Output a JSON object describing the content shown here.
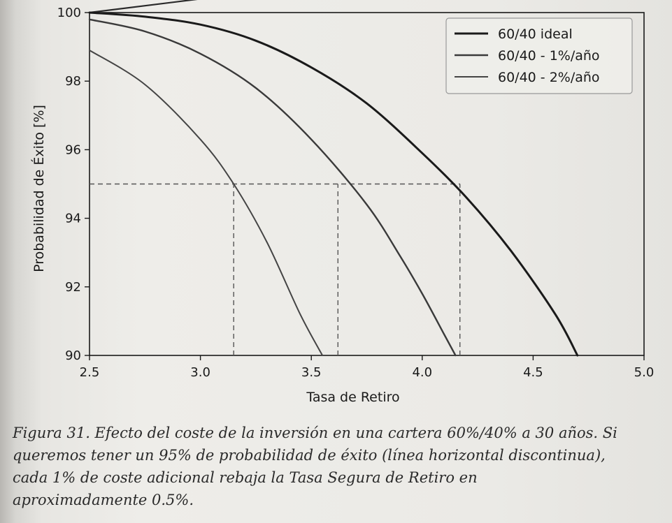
{
  "chart_data": {
    "type": "line",
    "xlabel": "Tasa de Retiro",
    "ylabel": "Probabilidad de Éxito [%]",
    "xlim": [
      2.5,
      5.0
    ],
    "ylim": [
      90,
      100
    ],
    "xticks": [
      "2.5",
      "3.0",
      "3.5",
      "4.0",
      "4.5",
      "5.0"
    ],
    "yticks": [
      "90",
      "92",
      "94",
      "96",
      "98",
      "100"
    ],
    "legend_position": "top-right",
    "grid": false,
    "series": [
      {
        "name": "60/40 ideal",
        "color": "#1a1a1a",
        "points": [
          [
            2.5,
            100.0
          ],
          [
            2.75,
            99.88
          ],
          [
            3.0,
            99.65
          ],
          [
            3.25,
            99.18
          ],
          [
            3.5,
            98.4
          ],
          [
            3.75,
            97.35
          ],
          [
            4.0,
            95.9
          ],
          [
            4.2,
            94.6
          ],
          [
            4.4,
            93.05
          ],
          [
            4.6,
            91.2
          ],
          [
            4.7,
            90.0
          ]
        ]
      },
      {
        "name": "60/40 - 1%/año",
        "color": "#3a3a3a",
        "points": [
          [
            2.5,
            99.8
          ],
          [
            2.75,
            99.45
          ],
          [
            3.0,
            98.8
          ],
          [
            3.25,
            97.8
          ],
          [
            3.5,
            96.3
          ],
          [
            3.75,
            94.4
          ],
          [
            3.9,
            92.9
          ],
          [
            4.0,
            91.8
          ],
          [
            4.1,
            90.6
          ],
          [
            4.15,
            90.0
          ]
        ]
      },
      {
        "name": "60/40 - 2%/año",
        "color": "#444444",
        "points": [
          [
            2.5,
            98.9
          ],
          [
            2.75,
            97.9
          ],
          [
            3.0,
            96.3
          ],
          [
            3.15,
            95.0
          ],
          [
            3.3,
            93.3
          ],
          [
            3.45,
            91.2
          ],
          [
            3.55,
            90.0
          ]
        ]
      }
    ],
    "reference_lines": [
      {
        "orientation": "horizontal",
        "y": 95,
        "x_range": [
          2.5,
          4.17
        ],
        "style": "dashed"
      },
      {
        "orientation": "vertical",
        "x": 3.15,
        "y_range": [
          90,
          95
        ],
        "style": "dashed"
      },
      {
        "orientation": "vertical",
        "x": 3.62,
        "y_range": [
          90,
          95
        ],
        "style": "dashed"
      },
      {
        "orientation": "vertical",
        "x": 4.17,
        "y_range": [
          90,
          95
        ],
        "style": "dashed"
      }
    ],
    "extra_line": {
      "points": [
        [
          2.5,
          100.0
        ],
        [
          3.0,
          100.4
        ],
        [
          3.5,
          100.5
        ],
        [
          4.0,
          100.5
        ],
        [
          5.0,
          100.5
        ]
      ],
      "color": "#2a2a2a"
    }
  },
  "caption": {
    "lines": [
      "Figura 31. Efecto del coste de la inversión en una cartera 60%/40% a 30 años. Si",
      "queremos tener un 95% de probabilidad de éxito (línea horizontal discontinua),",
      "cada 1% de coste adicional rebaja la Tasa Segura de Retiro en",
      "aproximadamente 0.5%."
    ]
  }
}
